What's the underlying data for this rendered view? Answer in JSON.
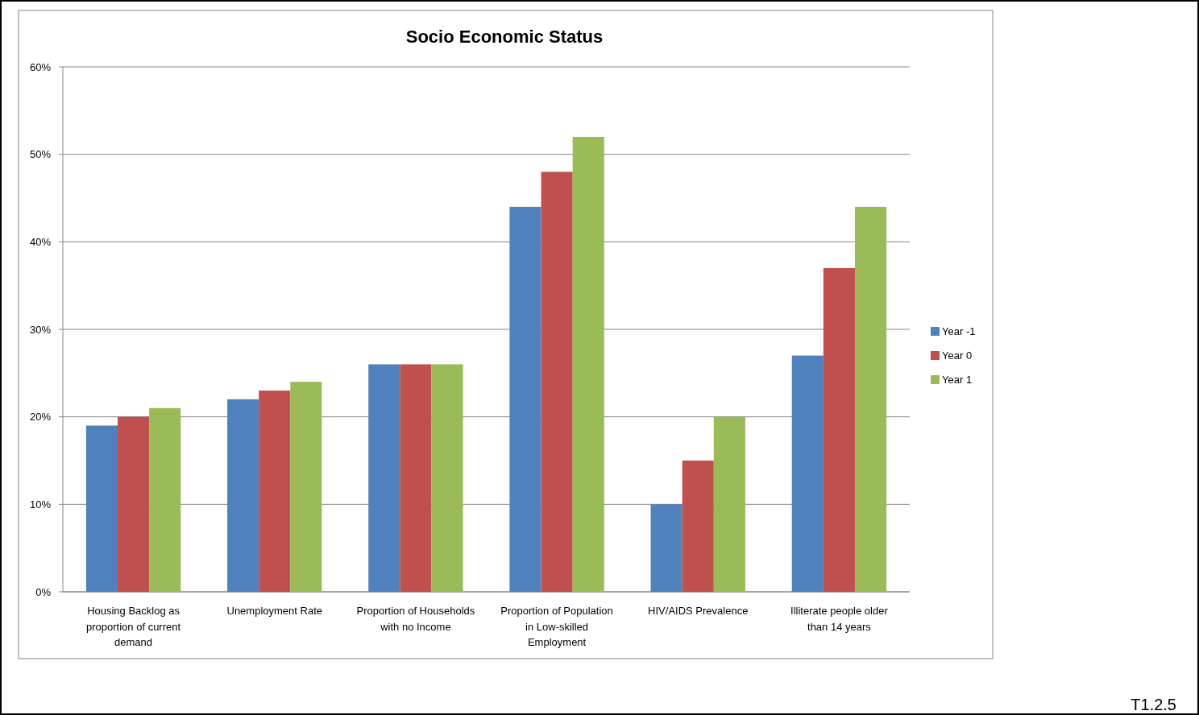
{
  "chart_data": {
    "type": "bar",
    "title": "Socio Economic Status",
    "categories": [
      "Housing Backlog as proportion of current demand",
      "Unemployment Rate",
      "Proportion of Households with no Income",
      "Proportion of Population in Low-skilled Employment",
      "HIV/AIDS Prevalence",
      "Illiterate people older than 14 years"
    ],
    "series": [
      {
        "name": "Year -1",
        "color": "#4f81bd",
        "values": [
          19,
          22,
          26,
          44,
          10,
          27
        ]
      },
      {
        "name": "Year 0",
        "color": "#c0504d",
        "values": [
          20,
          23,
          26,
          48,
          15,
          37
        ]
      },
      {
        "name": "Year 1",
        "color": "#9bbb59",
        "values": [
          21,
          24,
          26,
          52,
          20,
          44
        ]
      }
    ],
    "ylim": [
      0,
      60
    ],
    "yticks": [
      {
        "value": 0,
        "label": "0%"
      },
      {
        "value": 10,
        "label": "10%"
      },
      {
        "value": 20,
        "label": "20%"
      },
      {
        "value": 30,
        "label": "30%"
      },
      {
        "value": 40,
        "label": "40%"
      },
      {
        "value": 50,
        "label": "50%"
      },
      {
        "value": 60,
        "label": "60%"
      }
    ],
    "grid": "y",
    "legend": "right",
    "annotations": [
      "T1.2.5"
    ]
  }
}
